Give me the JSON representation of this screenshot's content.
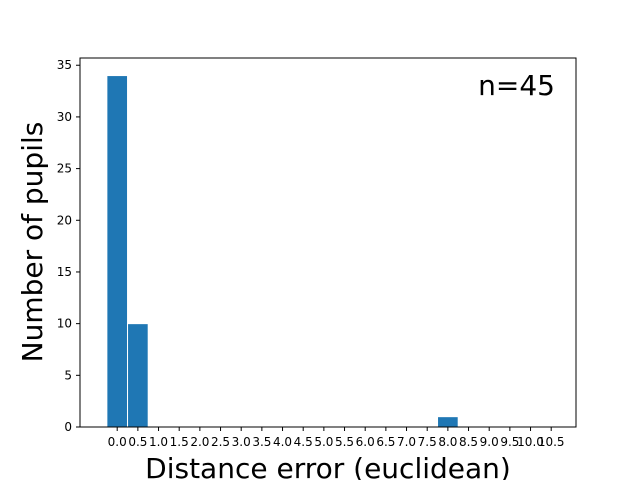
{
  "chart_data": {
    "type": "bar",
    "title": "",
    "xlabel": "Distance error (euclidean)",
    "ylabel": "Number of pupils",
    "annotation": "n=45",
    "x": [
      0.0,
      0.5,
      1.0,
      1.5,
      2.0,
      2.5,
      3.0,
      3.5,
      4.0,
      4.5,
      5.0,
      5.5,
      6.0,
      6.5,
      7.0,
      7.5,
      8.0,
      8.5,
      9.0,
      9.5,
      10.0,
      10.5
    ],
    "values": [
      34,
      10,
      0,
      0,
      0,
      0,
      0,
      0,
      0,
      0,
      0,
      0,
      0,
      0,
      0,
      0,
      1,
      0,
      0,
      0,
      0,
      0
    ],
    "xticks": [
      "0.0",
      "0.5",
      "1.0",
      "1.5",
      "2.0",
      "2.5",
      "3.0",
      "3.5",
      "4.0",
      "4.5",
      "5.0",
      "5.5",
      "6.0",
      "6.5",
      "7.0",
      "7.5",
      "8.0",
      "8.5",
      "9.0",
      "9.5",
      "10.0",
      "10.5"
    ],
    "yticks": [
      "0",
      "5",
      "10",
      "15",
      "20",
      "25",
      "30",
      "35"
    ],
    "xlim": [
      -0.9,
      11.1
    ],
    "ylim": [
      0,
      35.7
    ],
    "bar_color": "#1f77b4",
    "grid": false,
    "legend": false
  }
}
